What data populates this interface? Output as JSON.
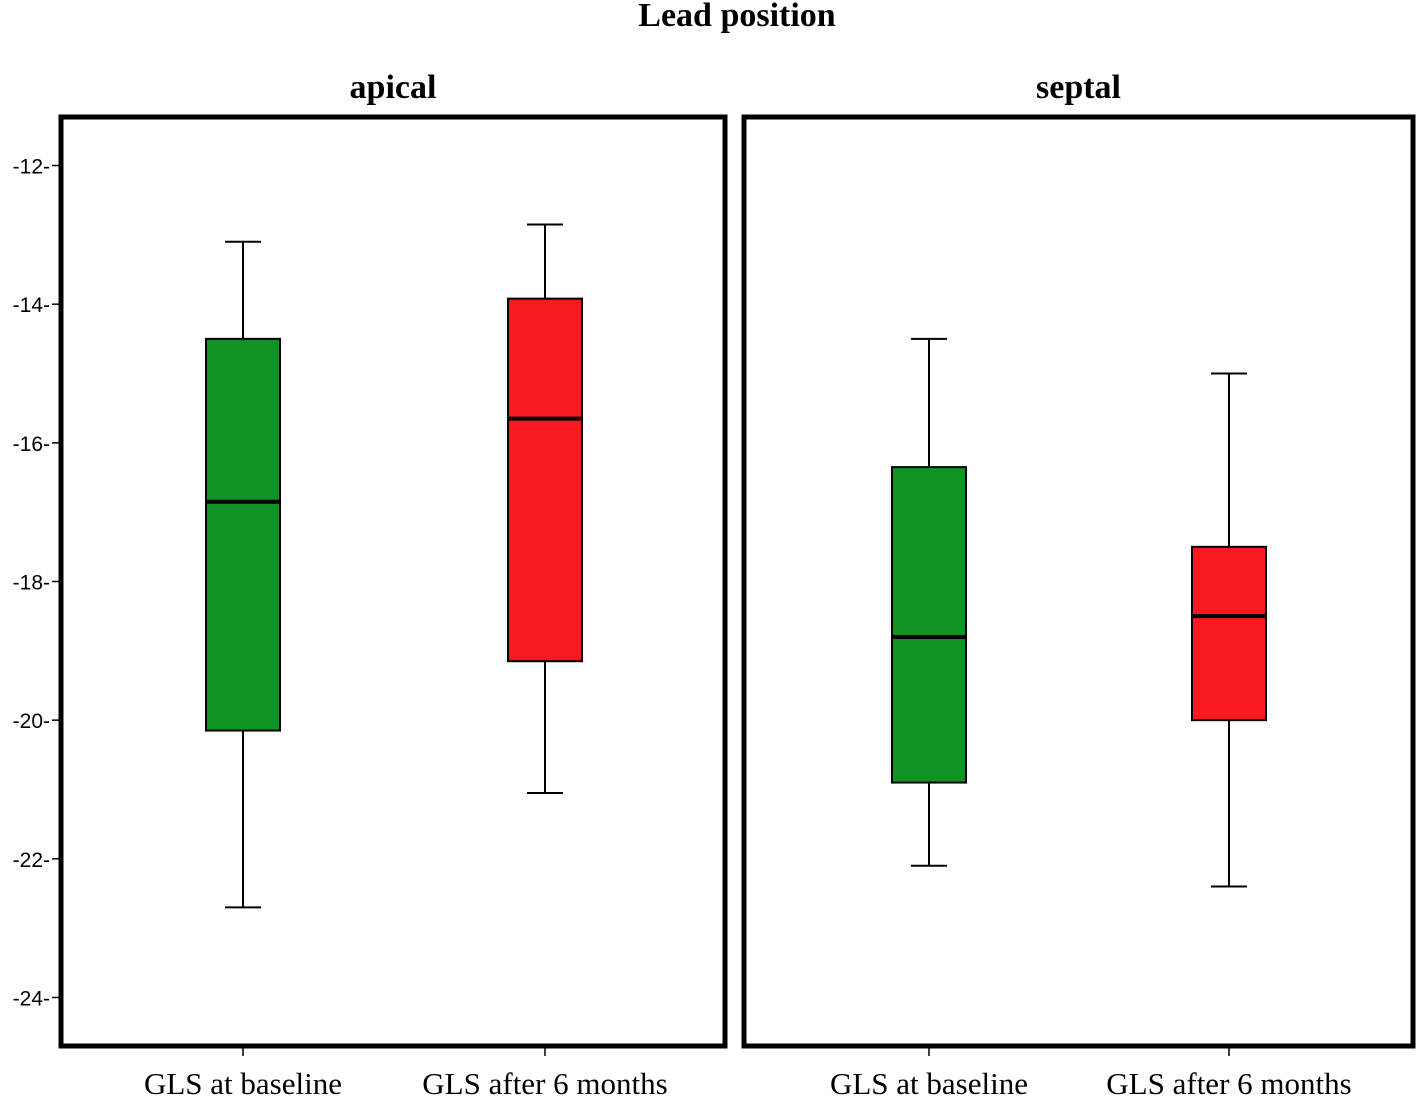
{
  "chart_data": {
    "type": "boxplot",
    "title": "Lead position",
    "ylabel": "",
    "xlabel": "",
    "ylim": [
      -24.7,
      -11.3
    ],
    "yticks": [
      -12,
      -14,
      -16,
      -18,
      -20,
      -22,
      -24
    ],
    "ytick_labels": [
      "-12-",
      "-14-",
      "-16-",
      "-18-",
      "-20-",
      "-22-",
      "-24-"
    ],
    "categories": [
      "GLS at baseline",
      "GLS after 6 months"
    ],
    "colors": {
      "GLS at baseline": "#0f9423",
      "GLS after 6 months": "#f81a1e"
    },
    "panels": [
      {
        "name": "apical",
        "boxes": [
          {
            "category": "GLS at baseline",
            "min": -22.7,
            "q1": -20.15,
            "median": -16.85,
            "q3": -14.5,
            "max": -13.1
          },
          {
            "category": "GLS after 6 months",
            "min": -21.05,
            "q1": -19.15,
            "median": -15.65,
            "q3": -13.92,
            "max": -12.85
          }
        ]
      },
      {
        "name": "septal",
        "boxes": [
          {
            "category": "GLS at baseline",
            "min": -22.1,
            "q1": -20.9,
            "median": -18.8,
            "q3": -16.35,
            "max": -14.5
          },
          {
            "category": "GLS after 6 months",
            "min": -22.4,
            "q1": -20.0,
            "median": -18.5,
            "q3": -17.5,
            "max": -15.0
          }
        ]
      }
    ]
  }
}
